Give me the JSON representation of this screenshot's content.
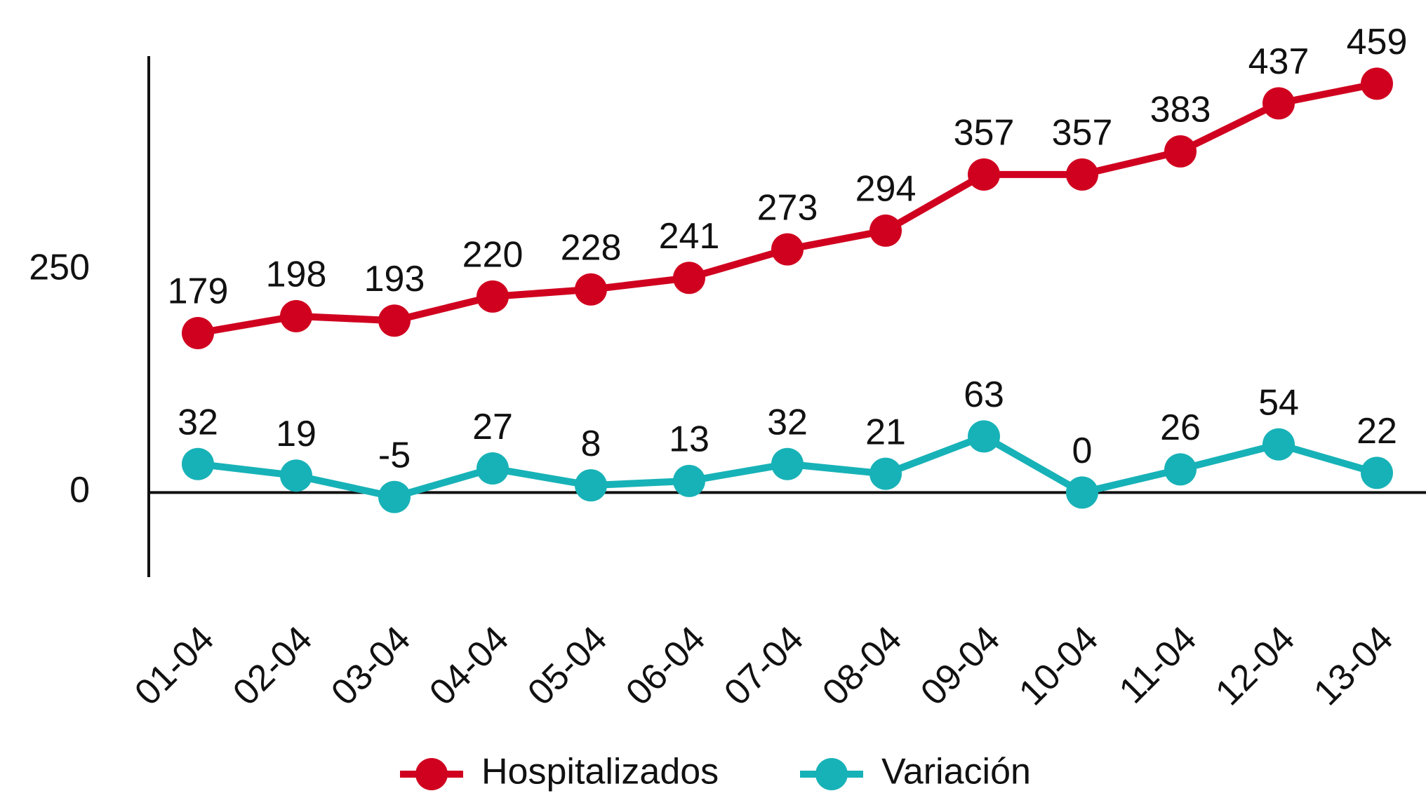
{
  "chart_data": {
    "type": "line",
    "categories": [
      "01-04",
      "02-04",
      "03-04",
      "04-04",
      "05-04",
      "06-04",
      "07-04",
      "08-04",
      "09-04",
      "10-04",
      "11-04",
      "12-04",
      "13-04"
    ],
    "series": [
      {
        "name": "Hospitalizados",
        "color": "#d0011f",
        "values": [
          179,
          198,
          193,
          220,
          228,
          241,
          273,
          294,
          357,
          357,
          383,
          437,
          459
        ]
      },
      {
        "name": "Variación",
        "color": "#17b2b7",
        "values": [
          32,
          19,
          -5,
          27,
          8,
          13,
          32,
          21,
          63,
          0,
          26,
          54,
          22
        ]
      }
    ],
    "ylim": [
      -95,
      490
    ],
    "yticks": [
      0,
      250
    ],
    "grid": false,
    "legend": "bottom"
  }
}
